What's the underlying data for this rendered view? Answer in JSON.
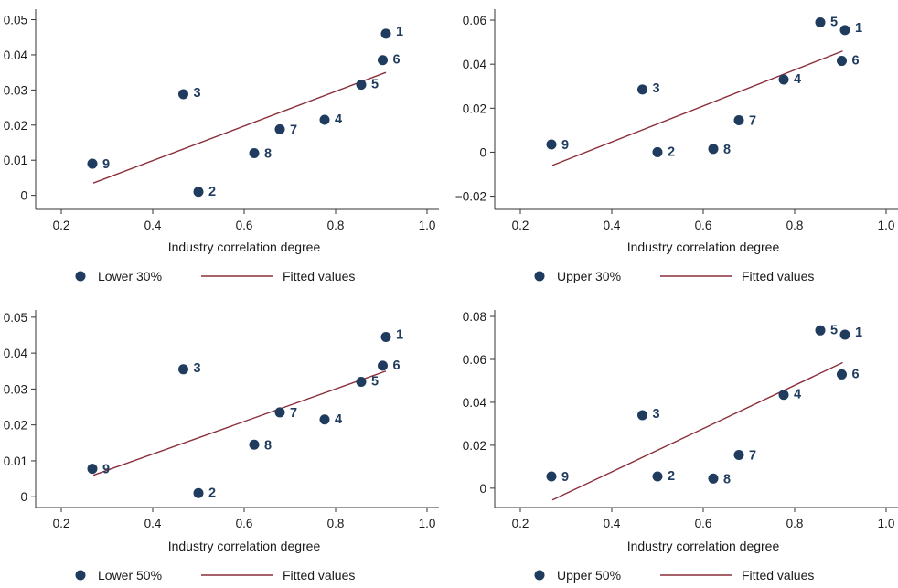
{
  "colors": {
    "marker": "#1f3b5e",
    "fit_line": "#8b2e3c",
    "axis": "#333333"
  },
  "chart_data": [
    {
      "type": "scatter",
      "xlabel": "Industry correlation degree",
      "xlim": [
        0.2,
        1.0
      ],
      "xticks": [
        "0.2",
        "0.4",
        "0.6",
        "0.8",
        "1.0"
      ],
      "ylim": [
        -0.004,
        0.053
      ],
      "yticks": [
        {
          "v": 0,
          "label": "0"
        },
        {
          "v": 0.01,
          "label": "0.01"
        },
        {
          "v": 0.02,
          "label": "0.02"
        },
        {
          "v": 0.03,
          "label": "0.03"
        },
        {
          "v": 0.04,
          "label": "0.04"
        },
        {
          "v": 0.05,
          "label": "0.05"
        }
      ],
      "legend": [
        "Lower 30%",
        "Fitted values"
      ],
      "points": [
        {
          "label": "1",
          "x": 0.91,
          "y": 0.046
        },
        {
          "label": "2",
          "x": 0.5,
          "y": 0.001
        },
        {
          "label": "3",
          "x": 0.467,
          "y": 0.0288
        },
        {
          "label": "4",
          "x": 0.776,
          "y": 0.0215
        },
        {
          "label": "5",
          "x": 0.856,
          "y": 0.0315
        },
        {
          "label": "6",
          "x": 0.903,
          "y": 0.0385
        },
        {
          "label": "7",
          "x": 0.678,
          "y": 0.0188
        },
        {
          "label": "8",
          "x": 0.622,
          "y": 0.012
        },
        {
          "label": "9",
          "x": 0.268,
          "y": 0.009
        }
      ],
      "fit": {
        "x": [
          0.27,
          0.91
        ],
        "y": [
          0.0035,
          0.035
        ]
      }
    },
    {
      "type": "scatter",
      "xlabel": "Industry correlation degree",
      "xlim": [
        0.2,
        1.0
      ],
      "xticks": [
        "0.2",
        "0.4",
        "0.6",
        "0.8",
        "1.0"
      ],
      "ylim": [
        -0.026,
        0.065
      ],
      "yticks": [
        {
          "v": -0.02,
          "label": "−0.02"
        },
        {
          "v": 0,
          "label": "0"
        },
        {
          "v": 0.02,
          "label": "0.02"
        },
        {
          "v": 0.04,
          "label": "0.04"
        },
        {
          "v": 0.06,
          "label": "0.06"
        }
      ],
      "legend": [
        "Upper 30%",
        "Fitted values"
      ],
      "points": [
        {
          "label": "1",
          "x": 0.91,
          "y": 0.0555
        },
        {
          "label": "2",
          "x": 0.5,
          "y": 0.0
        },
        {
          "label": "3",
          "x": 0.467,
          "y": 0.0285
        },
        {
          "label": "4",
          "x": 0.776,
          "y": 0.033
        },
        {
          "label": "5",
          "x": 0.856,
          "y": 0.059
        },
        {
          "label": "6",
          "x": 0.903,
          "y": 0.0415
        },
        {
          "label": "7",
          "x": 0.678,
          "y": 0.0145
        },
        {
          "label": "8",
          "x": 0.622,
          "y": 0.0015
        },
        {
          "label": "9",
          "x": 0.268,
          "y": 0.0035
        }
      ],
      "fit": {
        "x": [
          0.27,
          0.905
        ],
        "y": [
          -0.006,
          0.046
        ]
      }
    },
    {
      "type": "scatter",
      "xlabel": "Industry correlation degree",
      "xlim": [
        0.2,
        1.0
      ],
      "xticks": [
        "0.2",
        "0.4",
        "0.6",
        "0.8",
        "1.0"
      ],
      "ylim": [
        -0.003,
        0.052
      ],
      "yticks": [
        {
          "v": 0,
          "label": "0"
        },
        {
          "v": 0.01,
          "label": "0.01"
        },
        {
          "v": 0.02,
          "label": "0.02"
        },
        {
          "v": 0.03,
          "label": "0.03"
        },
        {
          "v": 0.04,
          "label": "0.04"
        },
        {
          "v": 0.05,
          "label": "0.05"
        }
      ],
      "legend": [
        "Lower 50%",
        "Fitted values"
      ],
      "points": [
        {
          "label": "1",
          "x": 0.91,
          "y": 0.0445
        },
        {
          "label": "2",
          "x": 0.5,
          "y": 0.001
        },
        {
          "label": "3",
          "x": 0.467,
          "y": 0.0355
        },
        {
          "label": "4",
          "x": 0.776,
          "y": 0.0215
        },
        {
          "label": "5",
          "x": 0.856,
          "y": 0.032
        },
        {
          "label": "6",
          "x": 0.903,
          "y": 0.0365
        },
        {
          "label": "7",
          "x": 0.678,
          "y": 0.0235
        },
        {
          "label": "8",
          "x": 0.622,
          "y": 0.0145
        },
        {
          "label": "9",
          "x": 0.268,
          "y": 0.0078
        }
      ],
      "fit": {
        "x": [
          0.27,
          0.91
        ],
        "y": [
          0.006,
          0.035
        ]
      }
    },
    {
      "type": "scatter",
      "xlabel": "Industry correlation degree",
      "xlim": [
        0.2,
        1.0
      ],
      "xticks": [
        "0.2",
        "0.4",
        "0.6",
        "0.8",
        "1.0"
      ],
      "ylim": [
        -0.009,
        0.083
      ],
      "yticks": [
        {
          "v": 0,
          "label": "0"
        },
        {
          "v": 0.02,
          "label": "0.02"
        },
        {
          "v": 0.04,
          "label": "0.04"
        },
        {
          "v": 0.06,
          "label": "0.06"
        },
        {
          "v": 0.08,
          "label": "0.08"
        }
      ],
      "legend": [
        "Upper 50%",
        "Fitted values"
      ],
      "points": [
        {
          "label": "1",
          "x": 0.91,
          "y": 0.0715
        },
        {
          "label": "2",
          "x": 0.5,
          "y": 0.0055
        },
        {
          "label": "3",
          "x": 0.467,
          "y": 0.034
        },
        {
          "label": "4",
          "x": 0.776,
          "y": 0.0435
        },
        {
          "label": "5",
          "x": 0.856,
          "y": 0.0735
        },
        {
          "label": "6",
          "x": 0.903,
          "y": 0.053
        },
        {
          "label": "7",
          "x": 0.678,
          "y": 0.0155
        },
        {
          "label": "8",
          "x": 0.622,
          "y": 0.0045
        },
        {
          "label": "9",
          "x": 0.268,
          "y": 0.0055
        }
      ],
      "fit": {
        "x": [
          0.27,
          0.905
        ],
        "y": [
          -0.0055,
          0.0585
        ]
      }
    }
  ]
}
